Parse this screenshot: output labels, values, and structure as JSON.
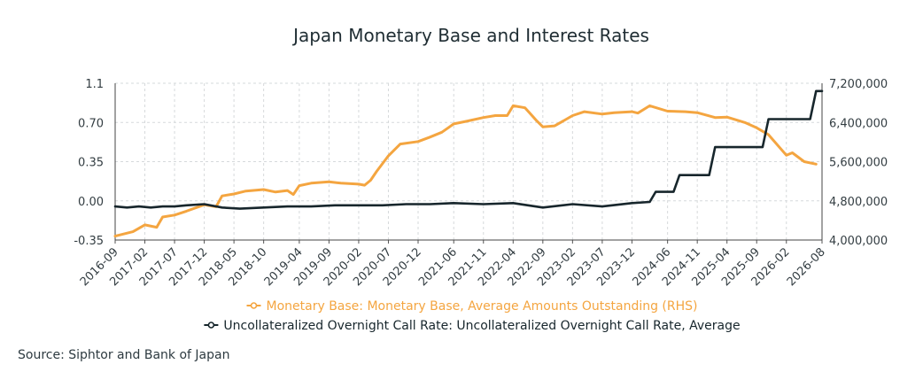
{
  "chart_data": {
    "type": "line",
    "title": "Japan Monetary Base and Interest Rates",
    "x_ticks": [
      "2016-09",
      "2017-02",
      "2017-07",
      "2017-12",
      "2018-05",
      "2018-10",
      "2019-04",
      "2019-09",
      "2020-02",
      "2020-07",
      "2020-12",
      "2021-06",
      "2021-11",
      "2022-04",
      "2022-09",
      "2023-02",
      "2023-07",
      "2023-12",
      "2024-06",
      "2024-11",
      "2025-04",
      "2025-09",
      "2026-02",
      "2026-08"
    ],
    "y_left_ticks": [
      "1.1",
      "0.70",
      "0.35",
      "0.00",
      "-0.35"
    ],
    "y_left_lim": [
      -0.35,
      1.05
    ],
    "y_right_ticks": [
      "7,200,000",
      "6,400,000",
      "5,600,000",
      "4,800,000",
      "4,000,000"
    ],
    "y_right_lim": [
      4000000,
      7200000
    ],
    "grid": true,
    "legend_position": "bottom",
    "series": [
      {
        "name": "Monetary Base: Monetary Base, Average Amounts Outstanding (RHS)",
        "axis": "right",
        "color": "#f4a540",
        "points": [
          [
            "2016-09",
            4080000
          ],
          [
            "2016-12",
            4170000
          ],
          [
            "2017-02",
            4310000
          ],
          [
            "2017-04",
            4260000
          ],
          [
            "2017-05",
            4470000
          ],
          [
            "2017-07",
            4510000
          ],
          [
            "2017-09",
            4590000
          ],
          [
            "2017-12",
            4720000
          ],
          [
            "2018-02",
            4680000
          ],
          [
            "2018-03",
            4900000
          ],
          [
            "2018-05",
            4940000
          ],
          [
            "2018-07",
            5000000
          ],
          [
            "2018-10",
            5030000
          ],
          [
            "2018-12",
            4980000
          ],
          [
            "2019-02",
            5010000
          ],
          [
            "2019-03",
            4930000
          ],
          [
            "2019-04",
            5110000
          ],
          [
            "2019-06",
            5160000
          ],
          [
            "2019-09",
            5190000
          ],
          [
            "2019-11",
            5160000
          ],
          [
            "2020-02",
            5140000
          ],
          [
            "2020-03",
            5120000
          ],
          [
            "2020-04",
            5220000
          ],
          [
            "2020-05",
            5400000
          ],
          [
            "2020-07",
            5720000
          ],
          [
            "2020-09",
            5960000
          ],
          [
            "2020-12",
            6010000
          ],
          [
            "2021-02",
            6100000
          ],
          [
            "2021-04",
            6200000
          ],
          [
            "2021-06",
            6370000
          ],
          [
            "2021-08",
            6420000
          ],
          [
            "2021-11",
            6500000
          ],
          [
            "2022-01",
            6540000
          ],
          [
            "2022-03",
            6540000
          ],
          [
            "2022-04",
            6740000
          ],
          [
            "2022-06",
            6700000
          ],
          [
            "2022-08",
            6430000
          ],
          [
            "2022-09",
            6310000
          ],
          [
            "2022-11",
            6330000
          ],
          [
            "2023-02",
            6540000
          ],
          [
            "2023-04",
            6620000
          ],
          [
            "2023-07",
            6570000
          ],
          [
            "2023-09",
            6600000
          ],
          [
            "2023-12",
            6620000
          ],
          [
            "2024-01",
            6590000
          ],
          [
            "2024-03",
            6740000
          ],
          [
            "2024-06",
            6630000
          ],
          [
            "2024-09",
            6620000
          ],
          [
            "2024-11",
            6600000
          ],
          [
            "2025-02",
            6500000
          ],
          [
            "2025-04",
            6510000
          ],
          [
            "2025-07",
            6400000
          ],
          [
            "2025-09",
            6290000
          ],
          [
            "2025-11",
            6150000
          ],
          [
            "2026-02",
            5730000
          ],
          [
            "2026-03",
            5780000
          ],
          [
            "2026-05",
            5600000
          ],
          [
            "2026-07",
            5550000
          ]
        ]
      },
      {
        "name": "Uncollateralized Overnight Call Rate: Uncollateralized Overnight Call Rate, Average",
        "axis": "left",
        "color": "#17262c",
        "points": [
          [
            "2016-09",
            -0.05
          ],
          [
            "2016-11",
            -0.06
          ],
          [
            "2017-01",
            -0.05
          ],
          [
            "2017-03",
            -0.06
          ],
          [
            "2017-05",
            -0.05
          ],
          [
            "2017-07",
            -0.05
          ],
          [
            "2017-09",
            -0.04
          ],
          [
            "2017-12",
            -0.03
          ],
          [
            "2018-03",
            -0.06
          ],
          [
            "2018-06",
            -0.07
          ],
          [
            "2018-10",
            -0.06
          ],
          [
            "2019-02",
            -0.05
          ],
          [
            "2019-06",
            -0.05
          ],
          [
            "2019-10",
            -0.04
          ],
          [
            "2020-02",
            -0.04
          ],
          [
            "2020-06",
            -0.04
          ],
          [
            "2020-10",
            -0.03
          ],
          [
            "2021-02",
            -0.03
          ],
          [
            "2021-06",
            -0.02
          ],
          [
            "2021-11",
            -0.03
          ],
          [
            "2022-04",
            -0.02
          ],
          [
            "2022-09",
            -0.06
          ],
          [
            "2023-02",
            -0.03
          ],
          [
            "2023-07",
            -0.05
          ],
          [
            "2023-12",
            -0.02
          ],
          [
            "2024-03",
            -0.01
          ],
          [
            "2024-04",
            0.08
          ],
          [
            "2024-07",
            0.08
          ],
          [
            "2024-08",
            0.23
          ],
          [
            "2025-01",
            0.23
          ],
          [
            "2025-02",
            0.48
          ],
          [
            "2025-10",
            0.48
          ],
          [
            "2025-11",
            0.73
          ],
          [
            "2026-06",
            0.73
          ],
          [
            "2026-07",
            0.98
          ],
          [
            "2026-08",
            0.98
          ]
        ]
      }
    ]
  },
  "source": "Source: Siphtor and Bank of Japan"
}
